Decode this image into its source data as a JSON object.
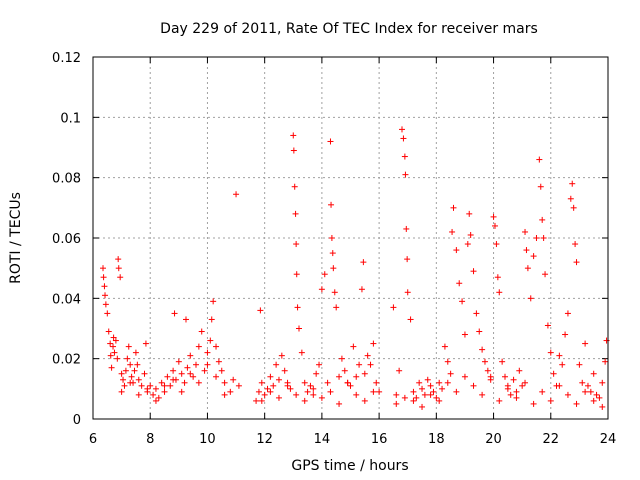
{
  "chart_data": {
    "type": "scatter",
    "title": "Day 229 of 2011, Rate Of TEC Index for receiver mars",
    "xlabel": "GPS time / hours",
    "ylabel": "ROTI / TECUs",
    "xlim": [
      6,
      24
    ],
    "ylim": [
      0,
      0.12
    ],
    "xticks": [
      6,
      8,
      10,
      12,
      14,
      16,
      18,
      20,
      22,
      24
    ],
    "yticks": [
      0,
      0.02,
      0.04,
      0.06,
      0.08,
      0.1,
      0.12
    ],
    "ytick_labels": [
      "0",
      "0.02",
      "0.04",
      "0.06",
      "0.08",
      "0.1",
      "0.12"
    ],
    "grid": true,
    "marker": "+",
    "color": "#ff0000",
    "series": [
      {
        "x": [
          6.35,
          6.37,
          6.4,
          6.42,
          6.45,
          6.5,
          6.55,
          6.6,
          6.62,
          6.65,
          6.7,
          6.72,
          6.75,
          6.8,
          6.85,
          6.88,
          6.9,
          6.95,
          7.0,
          7.05,
          7.1,
          7.15,
          7.2,
          7.25,
          7.3,
          7.35,
          7.4,
          7.45,
          7.5,
          7.55,
          7.6,
          7.7,
          7.8,
          7.85,
          7.9,
          8.0,
          8.1,
          8.2,
          8.3,
          8.4,
          8.5,
          8.6,
          8.7,
          8.8,
          8.85,
          8.9,
          9.0,
          9.1,
          9.2,
          9.25,
          9.3,
          9.4,
          9.5,
          9.6,
          9.7,
          9.8,
          9.9,
          10.0,
          10.1,
          10.15,
          10.2,
          10.3,
          10.4,
          10.5,
          10.6,
          10.8,
          10.9,
          11.0,
          11.1,
          11.7,
          11.8,
          11.85,
          11.9,
          12.0,
          12.1,
          12.2,
          12.3,
          12.4,
          12.5,
          12.6,
          12.7,
          12.8,
          12.9,
          13.0,
          13.02,
          13.05,
          13.08,
          13.1,
          13.12,
          13.15,
          13.2,
          13.3,
          13.4,
          13.5,
          13.6,
          13.7,
          13.8,
          13.9,
          14.0,
          14.1,
          14.2,
          14.3,
          14.32,
          14.35,
          14.38,
          14.4,
          14.45,
          14.5,
          14.6,
          14.7,
          14.8,
          14.9,
          15.0,
          15.1,
          15.2,
          15.3,
          15.4,
          15.45,
          15.5,
          15.6,
          15.7,
          15.8,
          15.9,
          16.0,
          16.5,
          16.6,
          16.7,
          16.8,
          16.85,
          16.9,
          16.92,
          16.95,
          16.98,
          17.0,
          17.1,
          17.2,
          17.3,
          17.4,
          17.5,
          17.6,
          17.7,
          17.8,
          17.9,
          18.0,
          18.1,
          18.2,
          18.3,
          18.4,
          18.5,
          18.55,
          18.6,
          18.7,
          18.8,
          18.9,
          19.0,
          19.1,
          19.15,
          19.2,
          19.3,
          19.4,
          19.5,
          19.6,
          19.7,
          19.8,
          19.9,
          20.0,
          20.05,
          20.1,
          20.15,
          20.2,
          20.3,
          20.4,
          20.5,
          20.6,
          20.7,
          20.8,
          20.9,
          21.0,
          21.1,
          21.15,
          21.2,
          21.3,
          21.4,
          21.5,
          21.6,
          21.65,
          21.7,
          21.75,
          21.8,
          21.9,
          22.0,
          22.1,
          22.2,
          22.3,
          22.4,
          22.5,
          22.6,
          22.7,
          22.75,
          22.8,
          22.85,
          22.9,
          23.0,
          23.1,
          23.2,
          23.3,
          23.4,
          23.5,
          23.6,
          23.7,
          23.8,
          23.9,
          23.95
        ],
        "y": [
          0.05,
          0.047,
          0.044,
          0.041,
          0.038,
          0.035,
          0.029,
          0.025,
          0.021,
          0.017,
          0.024,
          0.027,
          0.022,
          0.026,
          0.02,
          0.053,
          0.05,
          0.047,
          0.015,
          0.013,
          0.011,
          0.016,
          0.02,
          0.024,
          0.018,
          0.014,
          0.012,
          0.016,
          0.022,
          0.018,
          0.013,
          0.011,
          0.015,
          0.025,
          0.009,
          0.011,
          0.008,
          0.01,
          0.007,
          0.012,
          0.009,
          0.014,
          0.011,
          0.016,
          0.035,
          0.013,
          0.019,
          0.015,
          0.012,
          0.033,
          0.017,
          0.021,
          0.014,
          0.018,
          0.024,
          0.029,
          0.016,
          0.022,
          0.026,
          0.033,
          0.039,
          0.024,
          0.019,
          0.016,
          0.012,
          0.009,
          0.013,
          0.0745,
          0.011,
          0.006,
          0.009,
          0.036,
          0.012,
          0.008,
          0.01,
          0.014,
          0.011,
          0.018,
          0.013,
          0.021,
          0.016,
          0.012,
          0.01,
          0.094,
          0.089,
          0.077,
          0.068,
          0.058,
          0.048,
          0.037,
          0.03,
          0.022,
          0.012,
          0.009,
          0.011,
          0.008,
          0.015,
          0.018,
          0.043,
          0.048,
          0.012,
          0.092,
          0.071,
          0.06,
          0.055,
          0.05,
          0.042,
          0.037,
          0.014,
          0.02,
          0.016,
          0.012,
          0.011,
          0.024,
          0.014,
          0.018,
          0.043,
          0.052,
          0.015,
          0.021,
          0.018,
          0.025,
          0.012,
          0.009,
          0.037,
          0.008,
          0.016,
          0.096,
          0.093,
          0.087,
          0.081,
          0.063,
          0.053,
          0.042,
          0.033,
          0.009,
          0.007,
          0.012,
          0.01,
          0.008,
          0.013,
          0.011,
          0.009,
          0.007,
          0.012,
          0.01,
          0.024,
          0.019,
          0.015,
          0.062,
          0.07,
          0.056,
          0.045,
          0.039,
          0.028,
          0.058,
          0.068,
          0.061,
          0.049,
          0.035,
          0.029,
          0.023,
          0.019,
          0.016,
          0.014,
          0.067,
          0.064,
          0.058,
          0.047,
          0.042,
          0.019,
          0.014,
          0.011,
          0.008,
          0.013,
          0.009,
          0.016,
          0.011,
          0.062,
          0.056,
          0.05,
          0.04,
          0.054,
          0.06,
          0.086,
          0.077,
          0.066,
          0.06,
          0.048,
          0.031,
          0.022,
          0.015,
          0.011,
          0.021,
          0.018,
          0.028,
          0.035,
          0.073,
          0.078,
          0.07,
          0.058,
          0.052,
          0.018,
          0.012,
          0.025,
          0.011,
          0.009,
          0.015,
          0.008,
          0.007,
          0.012,
          0.019,
          0.026
        ]
      },
      {
        "x": [
          7.0,
          7.3,
          7.6,
          7.9,
          8.2,
          8.5,
          8.8,
          9.1,
          9.4,
          9.7,
          10.0,
          10.3,
          10.6,
          11.9,
          12.2,
          12.5,
          12.8,
          13.1,
          13.4,
          13.7,
          14.0,
          14.3,
          14.6,
          14.9,
          15.2,
          15.5,
          15.8,
          16.6,
          16.9,
          17.2,
          17.5,
          17.8,
          18.1,
          18.4,
          18.7,
          19.0,
          19.3,
          19.6,
          19.9,
          20.2,
          20.5,
          20.8,
          21.1,
          21.4,
          21.7,
          22.0,
          22.3,
          22.6,
          22.9,
          23.2,
          23.5,
          23.8
        ],
        "y": [
          0.009,
          0.012,
          0.008,
          0.01,
          0.006,
          0.011,
          0.013,
          0.009,
          0.015,
          0.012,
          0.018,
          0.014,
          0.008,
          0.006,
          0.009,
          0.007,
          0.011,
          0.008,
          0.006,
          0.01,
          0.007,
          0.009,
          0.005,
          0.012,
          0.008,
          0.006,
          0.009,
          0.005,
          0.007,
          0.006,
          0.004,
          0.008,
          0.006,
          0.012,
          0.009,
          0.014,
          0.011,
          0.008,
          0.013,
          0.006,
          0.01,
          0.007,
          0.012,
          0.005,
          0.009,
          0.006,
          0.011,
          0.008,
          0.005,
          0.009,
          0.006,
          0.004
        ]
      }
    ]
  }
}
